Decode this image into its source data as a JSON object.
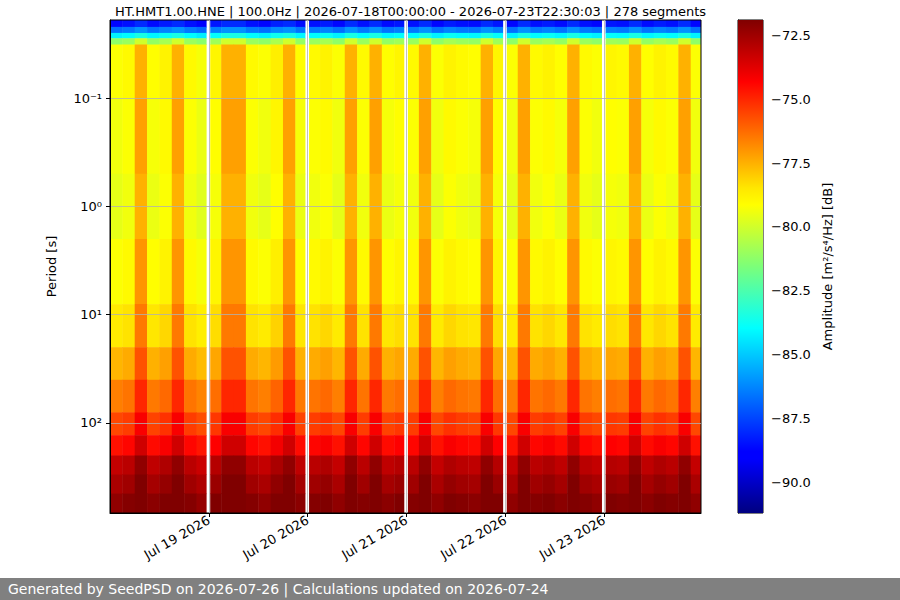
{
  "chart_data": {
    "type": "heatmap",
    "title": "HT.HMT1.00.HNE | 100.0Hz | 2026-07-18T00:00:00 - 2026-07-23T22:30:03 | 278 segments",
    "ylabel": "Period [s]",
    "log": "y",
    "grid": true,
    "xlim": [
      "2026-07-18T00:00:00Z",
      "2026-07-23T23:30:00Z"
    ],
    "xticks": [
      {
        "value": "2026-07-19T00:00:00Z",
        "label": "Jul 19 2026"
      },
      {
        "value": "2026-07-20T00:00:00Z",
        "label": "Jul 20 2026"
      },
      {
        "value": "2026-07-21T00:00:00Z",
        "label": "Jul 21 2026"
      },
      {
        "value": "2026-07-22T00:00:00Z",
        "label": "Jul 22 2026"
      },
      {
        "value": "2026-07-23T00:00:00Z",
        "label": "Jul 23 2026"
      }
    ],
    "ylim": [
      0.019,
      680
    ],
    "yticks": [
      {
        "value": 0.1,
        "label": "10⁻¹"
      },
      {
        "value": 1,
        "label": "10⁰"
      },
      {
        "value": 10,
        "label": "10¹"
      },
      {
        "value": 100,
        "label": "10²"
      }
    ],
    "x": [
      "2026-07-18T00:00Z",
      "2026-07-18T03:00Z",
      "2026-07-18T06:00Z",
      "2026-07-18T09:00Z",
      "2026-07-18T12:00Z",
      "2026-07-18T15:00Z",
      "2026-07-18T18:00Z",
      "2026-07-18T21:00Z",
      "2026-07-19T00:20Z",
      "2026-07-19T03:00Z",
      "2026-07-19T06:00Z",
      "2026-07-19T09:00Z",
      "2026-07-19T12:00Z",
      "2026-07-19T15:00Z",
      "2026-07-19T18:00Z",
      "2026-07-19T21:00Z",
      "2026-07-20T00:20Z",
      "2026-07-20T03:00Z",
      "2026-07-20T06:00Z",
      "2026-07-20T09:00Z",
      "2026-07-20T12:00Z",
      "2026-07-20T15:00Z",
      "2026-07-20T18:00Z",
      "2026-07-20T21:00Z",
      "2026-07-21T00:20Z",
      "2026-07-21T03:00Z",
      "2026-07-21T06:00Z",
      "2026-07-21T09:00Z",
      "2026-07-21T12:00Z",
      "2026-07-21T15:00Z",
      "2026-07-21T18:00Z",
      "2026-07-21T21:00Z",
      "2026-07-22T00:20Z",
      "2026-07-22T03:00Z",
      "2026-07-22T06:00Z",
      "2026-07-22T09:00Z",
      "2026-07-22T12:00Z",
      "2026-07-22T15:00Z",
      "2026-07-22T18:00Z",
      "2026-07-22T21:00Z",
      "2026-07-23T00:20Z",
      "2026-07-23T03:00Z",
      "2026-07-23T06:00Z",
      "2026-07-23T09:00Z",
      "2026-07-23T12:00Z",
      "2026-07-23T15:00Z",
      "2026-07-23T18:00Z",
      "2026-07-23T21:00Z"
    ],
    "x_end": [
      "2026-07-18T03:00Z",
      "2026-07-18T06:00Z",
      "2026-07-18T09:00Z",
      "2026-07-18T12:00Z",
      "2026-07-18T15:00Z",
      "2026-07-18T18:00Z",
      "2026-07-18T21:00Z",
      "2026-07-18T23:20Z",
      "2026-07-19T03:00Z",
      "2026-07-19T06:00Z",
      "2026-07-19T09:00Z",
      "2026-07-19T12:00Z",
      "2026-07-19T15:00Z",
      "2026-07-19T18:00Z",
      "2026-07-19T21:00Z",
      "2026-07-19T23:20Z",
      "2026-07-20T03:00Z",
      "2026-07-20T06:00Z",
      "2026-07-20T09:00Z",
      "2026-07-20T12:00Z",
      "2026-07-20T15:00Z",
      "2026-07-20T18:00Z",
      "2026-07-20T21:00Z",
      "2026-07-20T23:20Z",
      "2026-07-21T03:00Z",
      "2026-07-21T06:00Z",
      "2026-07-21T09:00Z",
      "2026-07-21T12:00Z",
      "2026-07-21T15:00Z",
      "2026-07-21T18:00Z",
      "2026-07-21T21:00Z",
      "2026-07-21T23:20Z",
      "2026-07-22T03:00Z",
      "2026-07-22T06:00Z",
      "2026-07-22T09:00Z",
      "2026-07-22T12:00Z",
      "2026-07-22T15:00Z",
      "2026-07-22T18:00Z",
      "2026-07-22T21:00Z",
      "2026-07-22T23:20Z",
      "2026-07-23T03:00Z",
      "2026-07-23T06:00Z",
      "2026-07-23T09:00Z",
      "2026-07-23T12:00Z",
      "2026-07-23T15:00Z",
      "2026-07-23T18:00Z",
      "2026-07-23T21:00Z",
      "2026-07-23T23:30Z"
    ],
    "y_edges": [
      0.019,
      0.022,
      0.025,
      0.028,
      0.032,
      0.1,
      0.5,
      2,
      8,
      20,
      40,
      80,
      130,
      200,
      300,
      450,
      680
    ],
    "values": [
      [
        -88.7,
        -88.5,
        -88.0,
        -88.6,
        -88.3,
        -88.0,
        -88.5,
        -88.8,
        -88.4,
        -88.0,
        -88.0,
        -88.5,
        -88.7,
        -88.2,
        -88.0,
        -88.6,
        -88.5,
        -88.3,
        -88.7,
        -88.0,
        -88.5,
        -88.0,
        -88.6,
        -88.4,
        -88.5,
        -88.0,
        -88.7,
        -88.3,
        -88.5,
        -88.6,
        -88.0,
        -88.4,
        -88.7,
        -88.0,
        -88.5,
        -88.3,
        -88.6,
        -88.0,
        -88.5,
        -88.7,
        -88.4,
        -88.5,
        -88.0,
        -88.6,
        -88.3,
        -88.5,
        -88.0,
        -88.7
      ],
      [
        -86.7,
        -86.5,
        -86.0,
        -86.6,
        -86.3,
        -86.0,
        -86.5,
        -86.8,
        -86.4,
        -86.0,
        -86.0,
        -86.5,
        -86.7,
        -86.2,
        -86.0,
        -86.6,
        -86.5,
        -86.3,
        -86.7,
        -86.0,
        -86.5,
        -86.0,
        -86.6,
        -86.4,
        -86.5,
        -86.0,
        -86.7,
        -86.3,
        -86.5,
        -86.6,
        -86.0,
        -86.4,
        -86.7,
        -86.0,
        -86.5,
        -86.3,
        -86.6,
        -86.0,
        -86.5,
        -86.7,
        -86.4,
        -86.5,
        -86.0,
        -86.6,
        -86.3,
        -86.5,
        -86.0,
        -86.7
      ],
      [
        -84.2,
        -84.0,
        -83.5,
        -84.1,
        -83.8,
        -83.5,
        -84.0,
        -84.3,
        -83.9,
        -83.5,
        -83.5,
        -84.0,
        -84.2,
        -83.7,
        -83.5,
        -84.1,
        -84.0,
        -83.8,
        -84.2,
        -83.5,
        -84.0,
        -83.5,
        -84.1,
        -83.9,
        -84.0,
        -83.5,
        -84.2,
        -83.8,
        -84.0,
        -84.1,
        -83.5,
        -83.9,
        -84.2,
        -83.5,
        -84.0,
        -83.8,
        -84.1,
        -83.5,
        -84.0,
        -84.2,
        -83.9,
        -84.0,
        -83.5,
        -84.1,
        -83.8,
        -84.0,
        -83.5,
        -84.2
      ],
      [
        -81.2,
        -81.0,
        -80.0,
        -81.1,
        -80.8,
        -80.0,
        -81.0,
        -81.3,
        -80.9,
        -80.0,
        -80.0,
        -81.0,
        -81.2,
        -80.7,
        -80.0,
        -81.1,
        -81.0,
        -80.8,
        -81.2,
        -80.0,
        -81.0,
        -80.0,
        -81.1,
        -80.9,
        -81.0,
        -80.0,
        -81.2,
        -80.8,
        -81.0,
        -81.1,
        -80.0,
        -80.9,
        -81.2,
        -80.0,
        -81.0,
        -80.8,
        -81.1,
        -80.0,
        -81.0,
        -81.2,
        -80.9,
        -81.0,
        -80.0,
        -81.1,
        -80.8,
        -81.0,
        -80.0,
        -81.2
      ],
      [
        -79.2,
        -79.0,
        -77.5,
        -79.1,
        -78.8,
        -77.5,
        -79.0,
        -79.3,
        -78.9,
        -77.5,
        -77.5,
        -79.0,
        -79.2,
        -78.7,
        -77.5,
        -79.1,
        -79.0,
        -78.8,
        -79.2,
        -77.5,
        -79.0,
        -77.5,
        -79.1,
        -78.9,
        -79.0,
        -77.5,
        -79.2,
        -78.8,
        -79.0,
        -79.1,
        -77.5,
        -78.9,
        -79.2,
        -77.5,
        -79.0,
        -78.8,
        -79.1,
        -77.5,
        -79.0,
        -79.2,
        -78.9,
        -79.0,
        -77.5,
        -79.1,
        -78.8,
        -79.0,
        -77.5,
        -79.2
      ],
      [
        -79.4,
        -79.2,
        -77.2,
        -79.3,
        -79.0,
        -77.2,
        -79.2,
        -79.5,
        -79.1,
        -77.2,
        -77.2,
        -79.2,
        -79.4,
        -78.9,
        -77.2,
        -79.3,
        -79.2,
        -79.0,
        -79.4,
        -77.2,
        -79.2,
        -77.2,
        -79.3,
        -79.1,
        -79.2,
        -77.2,
        -79.4,
        -79.0,
        -79.2,
        -79.3,
        -77.2,
        -79.1,
        -79.4,
        -77.2,
        -79.2,
        -79.0,
        -79.3,
        -77.2,
        -79.2,
        -79.4,
        -79.1,
        -79.2,
        -77.2,
        -79.3,
        -79.0,
        -79.2,
        -77.2,
        -79.4
      ],
      [
        -79.6,
        -79.4,
        -77.5,
        -79.5,
        -79.2,
        -77.5,
        -79.4,
        -79.7,
        -79.3,
        -77.5,
        -77.5,
        -79.4,
        -79.6,
        -79.1,
        -77.5,
        -79.5,
        -79.4,
        -79.2,
        -79.6,
        -77.5,
        -79.4,
        -77.5,
        -79.5,
        -79.3,
        -79.4,
        -77.5,
        -79.6,
        -79.2,
        -79.4,
        -79.5,
        -77.5,
        -79.3,
        -79.6,
        -77.5,
        -79.4,
        -79.2,
        -79.5,
        -77.5,
        -79.4,
        -79.6,
        -79.3,
        -79.4,
        -77.5,
        -79.5,
        -79.2,
        -79.4,
        -77.5,
        -79.6
      ],
      [
        -79.2,
        -79.0,
        -77.0,
        -79.1,
        -78.8,
        -77.0,
        -79.0,
        -79.3,
        -78.9,
        -77.0,
        -77.0,
        -79.0,
        -79.2,
        -78.7,
        -77.0,
        -79.1,
        -79.0,
        -78.8,
        -79.2,
        -77.0,
        -79.0,
        -77.0,
        -79.1,
        -78.9,
        -79.0,
        -77.0,
        -79.2,
        -78.8,
        -79.0,
        -79.1,
        -77.0,
        -78.9,
        -79.2,
        -77.0,
        -79.0,
        -78.8,
        -79.1,
        -77.0,
        -79.0,
        -79.2,
        -78.9,
        -79.0,
        -77.0,
        -79.1,
        -78.8,
        -79.0,
        -77.0,
        -79.2
      ],
      [
        -78.6,
        -78.4,
        -76.5,
        -78.5,
        -78.2,
        -76.5,
        -78.4,
        -78.7,
        -78.3,
        -76.5,
        -76.5,
        -78.4,
        -78.6,
        -78.1,
        -76.5,
        -78.5,
        -78.4,
        -78.2,
        -78.6,
        -76.5,
        -78.4,
        -76.5,
        -78.5,
        -78.3,
        -78.4,
        -76.5,
        -78.6,
        -78.2,
        -78.4,
        -78.5,
        -76.5,
        -78.3,
        -78.6,
        -76.5,
        -78.4,
        -78.2,
        -78.5,
        -76.5,
        -78.4,
        -78.6,
        -78.3,
        -78.4,
        -76.5,
        -78.5,
        -78.2,
        -78.4,
        -76.5,
        -78.6
      ],
      [
        -77.6,
        -77.4,
        -75.8,
        -77.5,
        -77.2,
        -75.8,
        -77.4,
        -77.7,
        -77.3,
        -75.8,
        -75.8,
        -77.4,
        -77.6,
        -77.1,
        -75.8,
        -77.5,
        -77.4,
        -77.2,
        -77.6,
        -75.8,
        -77.4,
        -75.8,
        -77.5,
        -77.3,
        -77.4,
        -75.8,
        -77.6,
        -77.2,
        -77.4,
        -77.5,
        -75.8,
        -77.3,
        -77.6,
        -75.8,
        -77.4,
        -77.2,
        -77.5,
        -75.8,
        -77.4,
        -77.6,
        -77.3,
        -77.4,
        -75.8,
        -77.5,
        -77.2,
        -77.4,
        -75.8,
        -77.6
      ],
      [
        -76.6,
        -76.4,
        -75.0,
        -76.5,
        -76.2,
        -75.0,
        -76.4,
        -76.7,
        -76.3,
        -75.0,
        -75.0,
        -76.4,
        -76.6,
        -76.1,
        -75.0,
        -76.5,
        -76.4,
        -76.2,
        -76.6,
        -75.0,
        -76.4,
        -75.0,
        -76.5,
        -76.3,
        -76.4,
        -75.0,
        -76.6,
        -76.2,
        -76.4,
        -76.5,
        -75.0,
        -76.3,
        -76.6,
        -75.0,
        -76.4,
        -76.2,
        -76.5,
        -75.0,
        -76.4,
        -76.6,
        -76.3,
        -76.4,
        -75.0,
        -76.5,
        -76.2,
        -76.4,
        -75.0,
        -76.6
      ],
      [
        -75.6,
        -75.4,
        -74.2,
        -75.5,
        -75.2,
        -74.2,
        -75.4,
        -75.7,
        -75.3,
        -74.2,
        -74.2,
        -75.4,
        -75.6,
        -75.1,
        -74.2,
        -75.5,
        -75.4,
        -75.2,
        -75.6,
        -74.2,
        -75.4,
        -74.2,
        -75.5,
        -75.3,
        -75.4,
        -74.2,
        -75.6,
        -75.2,
        -75.4,
        -75.5,
        -74.2,
        -75.3,
        -75.6,
        -74.2,
        -75.4,
        -75.2,
        -75.5,
        -74.2,
        -75.4,
        -75.6,
        -75.3,
        -75.4,
        -74.2,
        -75.5,
        -75.2,
        -75.4,
        -74.2,
        -75.6
      ],
      [
        -74.6,
        -74.4,
        -73.4,
        -74.5,
        -74.2,
        -73.4,
        -74.4,
        -74.7,
        -74.3,
        -73.4,
        -73.4,
        -74.4,
        -74.6,
        -74.1,
        -73.4,
        -74.5,
        -74.4,
        -74.2,
        -74.6,
        -73.4,
        -74.4,
        -73.4,
        -74.5,
        -74.3,
        -74.4,
        -73.4,
        -74.6,
        -74.2,
        -74.4,
        -74.5,
        -73.4,
        -74.3,
        -74.6,
        -73.4,
        -74.4,
        -74.2,
        -74.5,
        -73.4,
        -74.4,
        -74.6,
        -74.3,
        -74.4,
        -73.4,
        -74.5,
        -74.2,
        -74.4,
        -73.4,
        -74.6
      ],
      [
        -73.2,
        -73.0,
        -72.2,
        -73.1,
        -72.8,
        -72.2,
        -73.0,
        -73.3,
        -72.9,
        -72.2,
        -72.2,
        -73.0,
        -73.2,
        -72.7,
        -72.2,
        -73.1,
        -73.0,
        -72.8,
        -73.2,
        -72.2,
        -73.0,
        -72.2,
        -73.1,
        -72.9,
        -73.0,
        -72.2,
        -73.2,
        -72.8,
        -73.0,
        -73.1,
        -72.2,
        -72.9,
        -73.2,
        -72.2,
        -73.0,
        -72.8,
        -73.1,
        -72.2,
        -73.0,
        -73.2,
        -72.9,
        -73.0,
        -72.2,
        -73.1,
        -72.8,
        -73.0,
        -72.2,
        -73.2
      ],
      [
        -72.7,
        -72.5,
        -71.8,
        -72.6,
        -72.3,
        -71.8,
        -72.5,
        -72.8,
        -72.4,
        -71.8,
        -71.8,
        -72.5,
        -72.7,
        -72.2,
        -71.8,
        -72.6,
        -72.5,
        -72.3,
        -72.7,
        -71.8,
        -72.5,
        -71.8,
        -72.6,
        -72.4,
        -72.5,
        -71.8,
        -72.7,
        -72.3,
        -72.5,
        -72.6,
        -71.8,
        -72.4,
        -72.7,
        -71.8,
        -72.5,
        -72.3,
        -72.6,
        -71.8,
        -72.5,
        -72.7,
        -72.4,
        -72.5,
        -71.8,
        -72.6,
        -72.3,
        -72.5,
        -71.8,
        -72.7
      ],
      [
        -72.2,
        -72.0,
        -71.6,
        -72.1,
        -71.8,
        -71.6,
        -72.0,
        -72.3,
        -71.9,
        -71.6,
        -71.6,
        -72.0,
        -72.2,
        -71.7,
        -71.6,
        -72.1,
        -72.0,
        -71.8,
        -72.2,
        -71.6,
        -72.0,
        -71.6,
        -72.1,
        -71.9,
        -72.0,
        -71.6,
        -72.2,
        -71.8,
        -72.0,
        -72.1,
        -71.6,
        -71.9,
        -72.2,
        -71.6,
        -72.0,
        -71.8,
        -72.1,
        -71.6,
        -72.0,
        -72.2,
        -71.9,
        -72.0,
        -71.6,
        -72.1,
        -71.8,
        -72.0,
        -71.6,
        -72.2
      ]
    ],
    "colorbar": {
      "label": "Amplitude [m²/s⁴/Hz] [dB]",
      "range": [
        -91.2,
        -71.9
      ],
      "ticks": [
        {
          "value": -90,
          "label": "−90.0"
        },
        {
          "value": -87.5,
          "label": "−87.5"
        },
        {
          "value": -85,
          "label": "−85.0"
        },
        {
          "value": -82.5,
          "label": "−82.5"
        },
        {
          "value": -80,
          "label": "−80.0"
        },
        {
          "value": -77.5,
          "label": "−77.5"
        },
        {
          "value": -75,
          "label": "−75.0"
        },
        {
          "value": -72.5,
          "label": "−72.5"
        }
      ]
    },
    "footer": "Generated by SeedPSD on 2026-07-26 | Calculations updated on 2026-07-24"
  }
}
